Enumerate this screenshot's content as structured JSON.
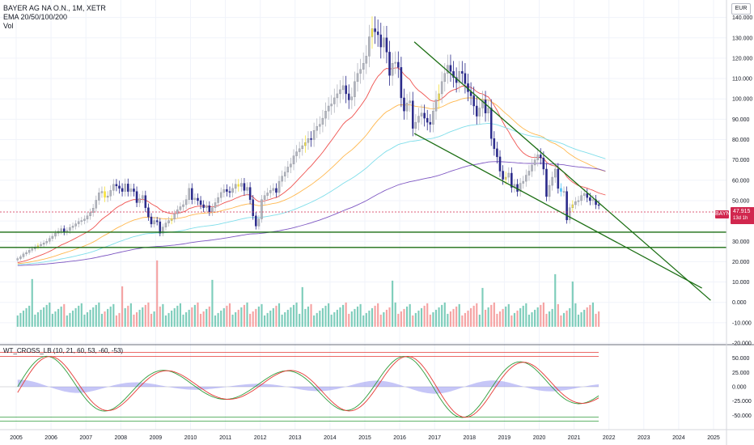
{
  "header": {
    "title": "BAYER AG NA O.N., 1M, XETR",
    "ema_label": "EMA 20/50/100/200",
    "vol_label": "Vol",
    "currency": "EUR"
  },
  "price_tag": {
    "symbol": "BAYN",
    "price": "47.915",
    "countdown": "13d 1h"
  },
  "oscillator_label": "WT_CROSS_LB (10, 21, 60, 53, -60, -53)",
  "colors": {
    "up_candle": "#b2b5be",
    "down_candle": "#2a2a8a",
    "highlight_candle": "#f5e13c",
    "teal_candle": "#4fc3f7",
    "ema20": "#ef5350",
    "ema50": "#ffb74d",
    "ema100": "#80deea",
    "ema200": "#7e57c2",
    "trendline": "#1b6e13",
    "volume_up": "#7ecdbb",
    "volume_down": "#f5a3a3",
    "wt1": "#2e9c3a",
    "wt2": "#e53935",
    "wt_area": "#8e8ef0",
    "last_price": "#d1274e"
  },
  "chart_data": {
    "type": "candlestick",
    "title": "BAYER AG NA O.N., 1M, XETR",
    "x_tick_labels": [
      "2005",
      "2006",
      "2007",
      "2008",
      "2009",
      "2010",
      "2011",
      "2012",
      "2013",
      "2014",
      "2015",
      "2016",
      "2017",
      "2018",
      "2019",
      "2020",
      "2021",
      "2022",
      "2023",
      "2024",
      "2025"
    ],
    "price_axis": {
      "ticks": [
        "140.000",
        "130.000",
        "120.000",
        "110.000",
        "100.000",
        "90.000",
        "80.000",
        "70.000",
        "60.000",
        "50.000",
        "40.000",
        "30.000",
        "20.000",
        "10.000",
        "0.000",
        "-10.000",
        "-20.000"
      ],
      "ylim": [
        -20,
        147
      ],
      "last_price": 47.915
    },
    "oscillator_axis": {
      "ticks": [
        "50.000",
        "25.000",
        "0.000",
        "-25.000",
        "-50.000"
      ],
      "ylim": [
        -68,
        68
      ],
      "levels": [
        60,
        53,
        -60,
        -53
      ]
    },
    "monthly_closes_by_year": [
      {
        "year": 2005,
        "closes": [
          21.5,
          22.4,
          23.8,
          24.5,
          25.6,
          26.3,
          27.2,
          27.8,
          28.5,
          29.2,
          30.0,
          31.4
        ]
      },
      {
        "year": 2006,
        "closes": [
          32.5,
          34.0,
          35.0,
          36.2,
          34.5,
          35.3,
          36.8,
          37.5,
          38.6,
          39.7,
          40.2,
          40.9
        ]
      },
      {
        "year": 2007,
        "closes": [
          42.5,
          44.1,
          46.3,
          50.2,
          53.8,
          54.5,
          51.6,
          52.3,
          55.0,
          58.0,
          57.2,
          56.0
        ]
      },
      {
        "year": 2008,
        "closes": [
          54.5,
          58.2,
          54.5,
          55.8,
          54.5,
          49.0,
          51.0,
          52.5,
          46.5,
          42.0,
          38.5,
          40.2
        ]
      },
      {
        "year": 2009,
        "closes": [
          39.6,
          34.0,
          37.0,
          39.0,
          40.2,
          41.0,
          43.5,
          45.5,
          47.0,
          48.0,
          50.5,
          56.0
        ]
      },
      {
        "year": 2010,
        "closes": [
          50.5,
          51.2,
          50.0,
          48.0,
          46.5,
          47.5,
          44.5,
          46.5,
          49.0,
          51.5,
          54.0,
          55.5
        ]
      },
      {
        "year": 2011,
        "closes": [
          54.5,
          54.0,
          56.0,
          58.0,
          57.0,
          58.5,
          55.0,
          56.5,
          50.5,
          42.5,
          37.5,
          41.0
        ]
      },
      {
        "year": 2012,
        "closes": [
          50.5,
          52.5,
          53.8,
          55.0,
          56.0,
          54.0,
          59.5,
          62.0,
          64.0,
          66.5,
          68.0,
          72.0
        ]
      },
      {
        "year": 2013,
        "closes": [
          74.0,
          75.5,
          77.0,
          78.5,
          80.5,
          80.0,
          84.5,
          86.5,
          87.5,
          90.5,
          94.0,
          96.5
        ]
      },
      {
        "year": 2014,
        "closes": [
          97.5,
          100.5,
          102.5,
          104.5,
          106.5,
          102.5,
          99.5,
          101.0,
          108.5,
          112.5,
          114.5,
          117.5
        ]
      },
      {
        "year": 2015,
        "closes": [
          121.0,
          130.5,
          134.5,
          133.0,
          131.5,
          125.5,
          130.0,
          123.0,
          111.5,
          117.5,
          118.0,
          115.5
        ]
      },
      {
        "year": 2016,
        "closes": [
          100.5,
          94.0,
          98.0,
          99.0,
          85.5,
          88.5,
          91.5,
          93.0,
          90.5,
          88.5,
          87.5,
          94.0
        ]
      },
      {
        "year": 2017,
        "closes": [
          99.5,
          102.5,
          108.5,
          112.5,
          116.5,
          113.5,
          110.5,
          108.0,
          113.5,
          112.5,
          107.5,
          103.5
        ]
      },
      {
        "year": 2018,
        "closes": [
          101.5,
          96.5,
          91.5,
          95.5,
          99.5,
          93.0,
          95.5,
          80.5,
          75.5,
          71.5,
          64.5,
          60.5
        ]
      },
      {
        "year": 2019,
        "closes": [
          61.5,
          63.5,
          56.5,
          58.0,
          54.5,
          58.5,
          59.5,
          62.5,
          64.5,
          67.5,
          70.0,
          72.5
        ]
      },
      {
        "year": 2020,
        "closes": [
          71.0,
          65.5,
          52.0,
          57.5,
          61.5,
          65.5,
          56.0,
          54.5,
          54.5,
          40.5,
          46.5,
          48.0
        ]
      },
      {
        "year": 2021,
        "closes": [
          49.5,
          50.0,
          52.5,
          53.5,
          51.5,
          50.0,
          50.5,
          48.0,
          47.9
        ]
      }
    ],
    "ema_series": [
      {
        "name": "EMA 20",
        "color": "#ef5350"
      },
      {
        "name": "EMA 50",
        "color": "#ffb74d"
      },
      {
        "name": "EMA 100",
        "color": "#80deea"
      },
      {
        "name": "EMA 200",
        "color": "#7e57c2"
      }
    ],
    "trendlines": [
      {
        "from": [
          "2016-06",
          128.0
        ],
        "to": [
          "2024-12",
          1.0
        ]
      },
      {
        "from": [
          "2016-06",
          83.0
        ],
        "to": [
          "2024-09",
          7.0
        ]
      }
    ],
    "horizontal_levels": [
      34.5,
      27.0
    ],
    "grid": true
  }
}
